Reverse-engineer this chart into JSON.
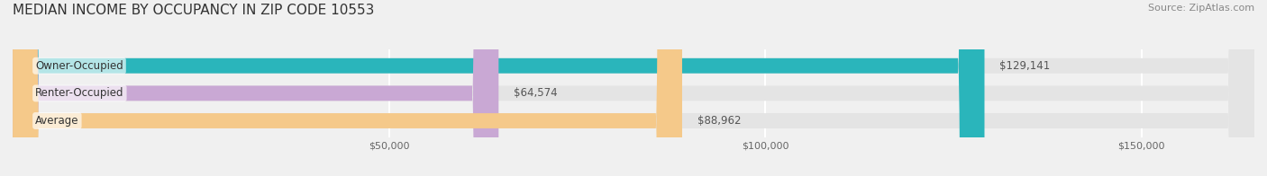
{
  "title": "MEDIAN INCOME BY OCCUPANCY IN ZIP CODE 10553",
  "source_text": "Source: ZipAtlas.com",
  "categories": [
    "Owner-Occupied",
    "Renter-Occupied",
    "Average"
  ],
  "values": [
    129141,
    64574,
    88962
  ],
  "bar_colors": [
    "#2ab5bb",
    "#c9a8d4",
    "#f5c98a"
  ],
  "value_labels": [
    "$129,141",
    "$64,574",
    "$88,962"
  ],
  "xlim": [
    0,
    165000
  ],
  "xticks": [
    0,
    50000,
    100000,
    150000
  ],
  "xticklabels": [
    "",
    "$50,000",
    "$100,000",
    "$150,000"
  ],
  "background_color": "#f0f0f0",
  "bar_background_color": "#e4e4e4",
  "title_fontsize": 11,
  "source_fontsize": 8,
  "bar_height": 0.55,
  "bar_label_fontsize": 8.5,
  "value_label_fontsize": 8.5,
  "grid_color": "#ffffff",
  "tick_label_fontsize": 8
}
